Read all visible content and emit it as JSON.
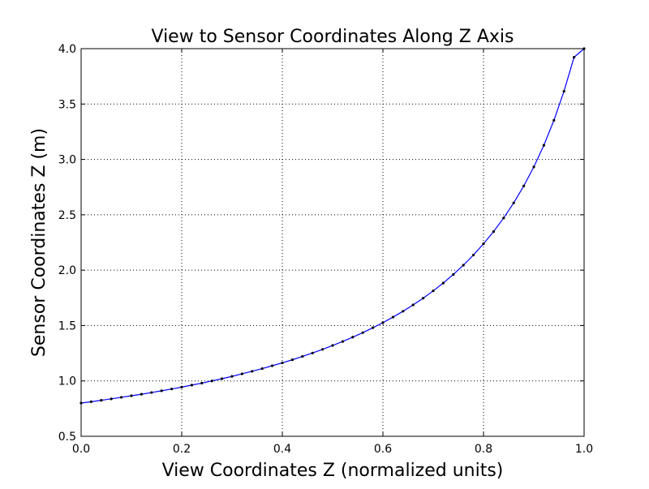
{
  "chart_data": {
    "type": "line",
    "title": "View to Sensor Coordinates Along Z Axis",
    "xlabel": "View Coordinates Z (normalized units)",
    "ylabel": "Sensor Coordinates Z (m)",
    "xlim": [
      0.0,
      1.0
    ],
    "ylim": [
      0.5,
      4.0
    ],
    "xticks": [
      "0.0",
      "0.2",
      "0.4",
      "0.6",
      "0.8",
      "1.0"
    ],
    "yticks": [
      "0.5",
      "1.0",
      "1.5",
      "2.0",
      "2.5",
      "3.0",
      "3.5",
      "4.0"
    ],
    "grid": true,
    "series": [
      {
        "markers": true,
        "x": [
          0.0,
          0.02,
          0.04,
          0.06,
          0.08,
          0.1,
          0.12,
          0.14,
          0.16,
          0.18,
          0.2,
          0.22,
          0.24,
          0.26,
          0.28,
          0.3,
          0.32,
          0.34,
          0.36,
          0.38,
          0.4,
          0.42,
          0.44,
          0.46,
          0.48,
          0.5,
          0.52,
          0.54,
          0.56,
          0.58,
          0.6,
          0.62,
          0.64,
          0.66,
          0.68,
          0.7,
          0.72,
          0.74,
          0.76,
          0.78,
          0.8,
          0.82,
          0.84,
          0.86,
          0.88,
          0.9,
          0.92,
          0.94,
          0.96,
          0.98,
          1.0
        ],
        "y": [
          0.8,
          0.812,
          0.825,
          0.838,
          0.852,
          0.866,
          0.88,
          0.895,
          0.911,
          0.927,
          0.944,
          0.962,
          0.98,
          1.0,
          1.02,
          1.041,
          1.064,
          1.087,
          1.111,
          1.137,
          1.163,
          1.191,
          1.221,
          1.252,
          1.285,
          1.32,
          1.356,
          1.395,
          1.436,
          1.48,
          1.526,
          1.576,
          1.629,
          1.686,
          1.747,
          1.813,
          1.884,
          1.961,
          2.045,
          2.137,
          2.238,
          2.348,
          2.471,
          2.607,
          2.76,
          2.932,
          3.128,
          3.353,
          3.615,
          3.922,
          4.0
        ]
      }
    ],
    "colors": {
      "line": "#0000ff",
      "marker": "#000000",
      "grid": "#000000",
      "frame": "#000000"
    }
  }
}
